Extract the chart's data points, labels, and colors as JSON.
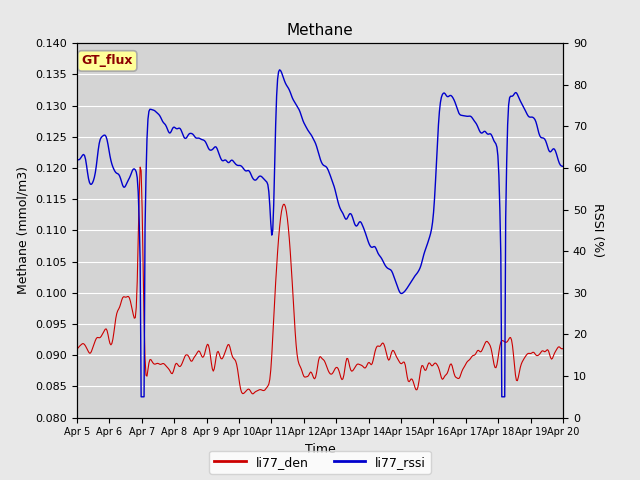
{
  "title": "Methane",
  "ylabel_left": "Methane (mmol/m3)",
  "ylabel_right": "RSSI (%)",
  "xlabel": "Time",
  "ylim_left": [
    0.08,
    0.14
  ],
  "ylim_right": [
    0,
    90
  ],
  "yticks_left": [
    0.08,
    0.085,
    0.09,
    0.095,
    0.1,
    0.105,
    0.11,
    0.115,
    0.12,
    0.125,
    0.13,
    0.135,
    0.14
  ],
  "yticks_right": [
    0,
    10,
    20,
    30,
    40,
    50,
    60,
    70,
    80,
    90
  ],
  "xtick_labels": [
    "Apr 5",
    "Apr 6",
    "Apr 7",
    "Apr 8",
    "Apr 9",
    "Apr 10",
    "Apr 11",
    "Apr 12",
    "Apr 13",
    "Apr 14",
    "Apr 15",
    "Apr 16",
    "Apr 17",
    "Apr 18",
    "Apr 19",
    "Apr 20"
  ],
  "legend_labels": [
    "li77_den",
    "li77_rssi"
  ],
  "line_colors": [
    "#cc0000",
    "#0000cc"
  ],
  "fig_bg_color": "#e8e8e8",
  "plot_bg_color": "#d4d4d4",
  "gt_flux_label": "GT_flux",
  "gt_flux_bg": "#ffff99",
  "gt_flux_border": "#aaaaaa",
  "title_fontsize": 11,
  "label_fontsize": 9,
  "tick_fontsize": 8,
  "legend_fontsize": 9
}
